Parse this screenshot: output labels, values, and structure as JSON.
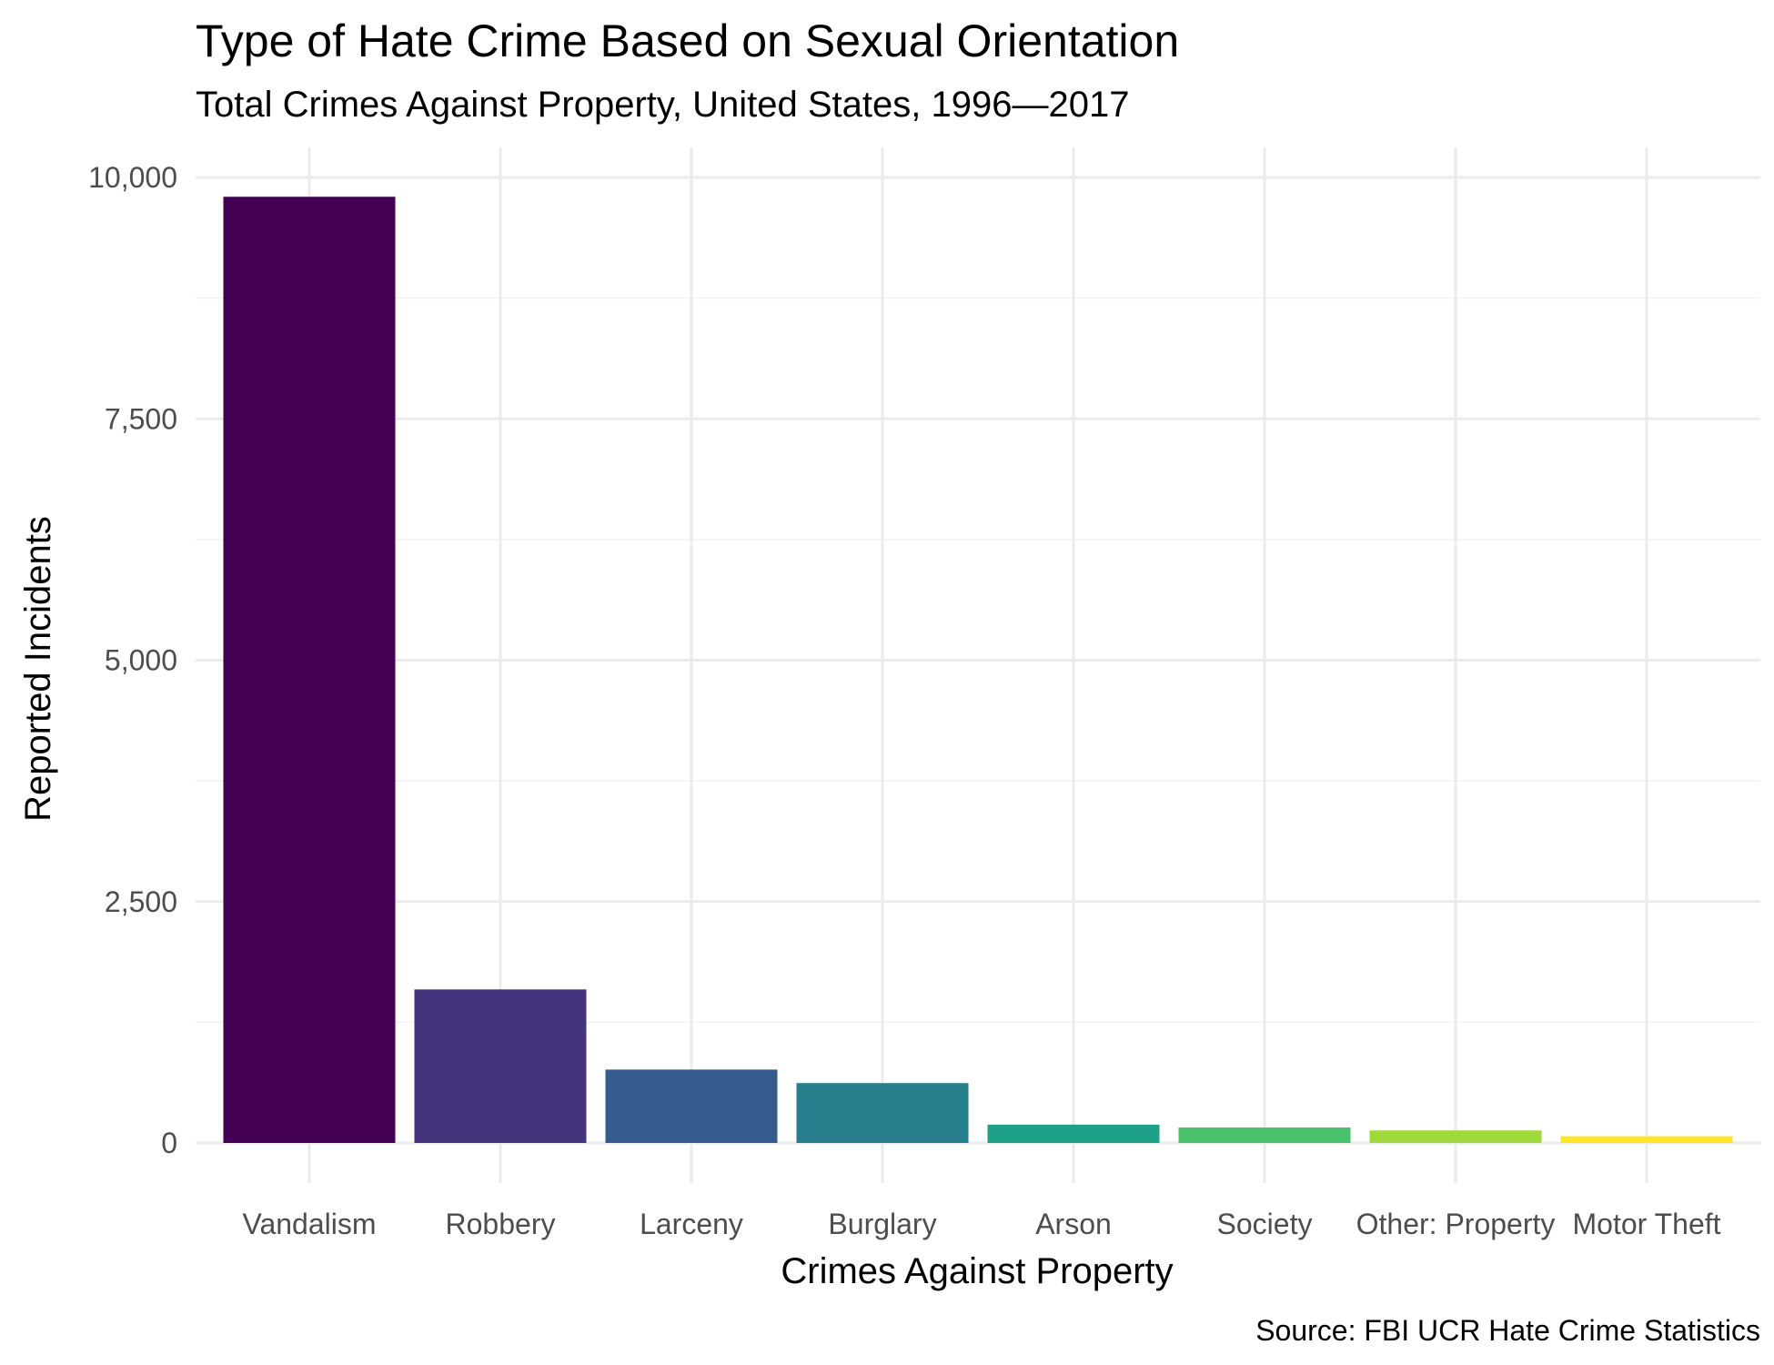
{
  "chart_data": {
    "type": "bar",
    "title": "Type of Hate Crime Based on Sexual Orientation",
    "subtitle": "Total Crimes Against Property, United States, 1996—2017",
    "xlabel": "Crimes Against Property",
    "ylabel": "Reported Incidents",
    "caption": "Source: FBI UCR Hate Crime Statistics",
    "categories": [
      "Vandalism",
      "Robbery",
      "Larceny",
      "Burglary",
      "Arson",
      "Society",
      "Other: Property",
      "Motor Theft"
    ],
    "values": [
      9800,
      1590,
      760,
      620,
      190,
      160,
      130,
      70
    ],
    "colors": [
      "#440154",
      "#46337E",
      "#365C8D",
      "#277F8E",
      "#1FA187",
      "#4AC16D",
      "#9FDA3A",
      "#FDE725"
    ],
    "ylim": [
      0,
      10000
    ],
    "yticks": [
      0,
      2500,
      5000,
      7500,
      10000
    ],
    "ytick_labels": [
      "0",
      "2,500",
      "5,000",
      "7,500",
      "10,000"
    ],
    "grid": true,
    "legend": "none"
  }
}
